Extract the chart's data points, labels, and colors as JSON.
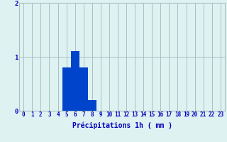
{
  "categories": [
    0,
    1,
    2,
    3,
    4,
    5,
    6,
    7,
    8,
    9,
    10,
    11,
    12,
    13,
    14,
    15,
    16,
    17,
    18,
    19,
    20,
    21,
    22,
    23
  ],
  "values": [
    0,
    0,
    0,
    0,
    0,
    0.8,
    1.1,
    0.8,
    0.2,
    0,
    0,
    0,
    0,
    0,
    0,
    0,
    0,
    0,
    0,
    0,
    0,
    0,
    0,
    0
  ],
  "bar_color": "#0044cc",
  "background_color": "#dff2f2",
  "grid_color": "#a8c0c0",
  "text_color": "#0000bb",
  "xlabel": "Précipitations 1h ( mm )",
  "ylim": [
    0,
    2
  ],
  "yticks": [
    0,
    1,
    2
  ],
  "tick_fontsize": 5.5,
  "xlabel_fontsize": 7.0
}
